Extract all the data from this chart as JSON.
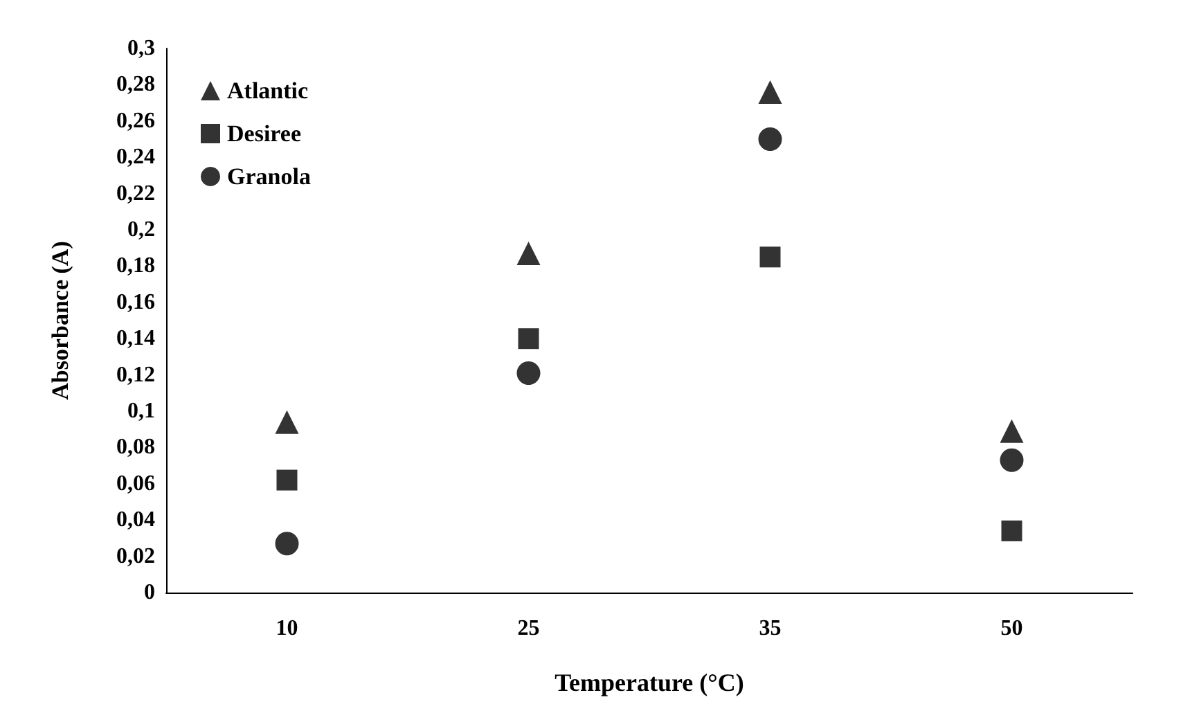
{
  "chart_data": {
    "type": "scatter",
    "xlabel": "Temperature (°C)",
    "ylabel": "Absorbance (A)",
    "categories": [
      "10",
      "25",
      "35",
      "50"
    ],
    "series": [
      {
        "name": "Atlantic",
        "color": "#000000",
        "marker": "triangle",
        "values": [
          0.094,
          0.187,
          0.276,
          0.089
        ]
      },
      {
        "name": "Desiree",
        "color": "#000000",
        "marker": "square",
        "values": [
          0.062,
          0.14,
          0.185,
          0.034
        ]
      },
      {
        "name": "Granola",
        "color": "#000000",
        "marker": "circle",
        "values": [
          0.027,
          0.121,
          0.25,
          0.073
        ]
      }
    ],
    "ylim": [
      0,
      0.3
    ],
    "yticks": [
      0,
      {
        "value": 0.02,
        "label": "0,02"
      },
      {
        "value": 0.04,
        "label": "0,04"
      },
      {
        "value": 0.06,
        "label": "0,06"
      },
      {
        "value": 0.08,
        "label": "0,08"
      },
      {
        "value": 0.1,
        "label": "0,1"
      },
      {
        "value": 0.12,
        "label": "0,12"
      },
      {
        "value": 0.14,
        "label": "0,14"
      },
      {
        "value": 0.16,
        "label": "0,16"
      },
      {
        "value": 0.18,
        "label": "0,18"
      },
      {
        "value": 0.2,
        "label": "0,2"
      },
      {
        "value": 0.22,
        "label": "0,22"
      },
      {
        "value": 0.24,
        "label": "0,24"
      },
      {
        "value": 0.26,
        "label": "0,26"
      },
      {
        "value": 0.28,
        "label": "0,28"
      },
      {
        "value": 0.3,
        "label": "0,3"
      }
    ],
    "grid": false,
    "legend": "top left"
  }
}
